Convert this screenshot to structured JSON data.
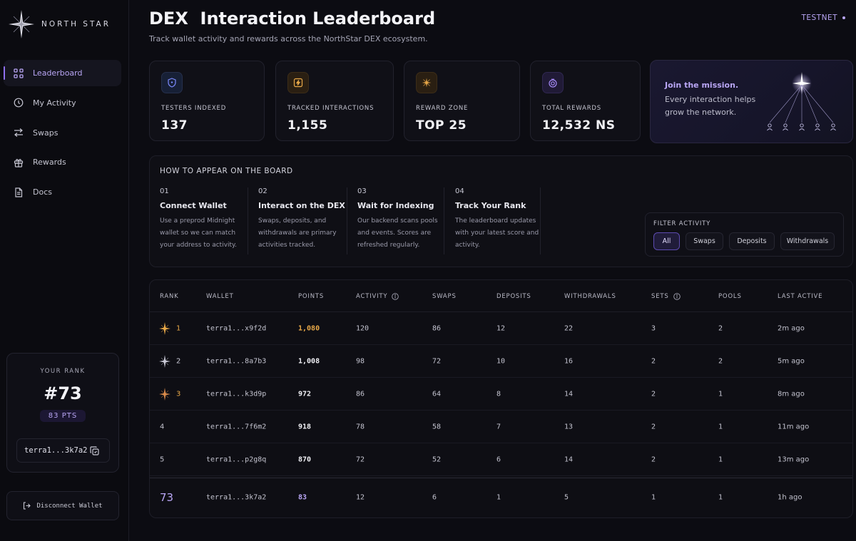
{
  "brand": {
    "name": "NORTH STAR"
  },
  "nav": [
    {
      "label": "Leaderboard",
      "icon": "grid-icon",
      "active": true
    },
    {
      "label": "My Activity",
      "icon": "activity-icon",
      "active": false
    },
    {
      "label": "Swaps",
      "icon": "swap-icon",
      "active": false
    },
    {
      "label": "Rewards",
      "icon": "gift-icon",
      "active": false
    },
    {
      "label": "Docs",
      "icon": "document-icon",
      "active": false
    }
  ],
  "your_rank": {
    "label": "YOUR RANK",
    "rank": "#73",
    "points": "83 PTS",
    "wallet": "terra1...3k7a2"
  },
  "disconnect_label": "Disconnect Wallet",
  "header": {
    "title": "DEX  Interaction Leaderboard",
    "subtitle": "Track wallet activity and rewards across the NorthStar DEX ecosystem.",
    "network": "TESTNET"
  },
  "stats": [
    {
      "label": "TESTERS INDEXED",
      "value": "137",
      "icon": "shield-icon",
      "color": "#7d8bff"
    },
    {
      "label": "TRACKED INTERACTIONS",
      "value": "1,155",
      "icon": "bolt-icon",
      "color": "#e9a948"
    },
    {
      "label": "REWARD ZONE",
      "value": "TOP 25",
      "icon": "star-icon",
      "color": "#e9a948"
    },
    {
      "label": "TOTAL REWARDS",
      "value": "12,532 NS",
      "icon": "coin-icon",
      "color": "#a78bfa"
    }
  ],
  "mission": {
    "title": "Join the mission.",
    "text": "Every interaction helps grow the network."
  },
  "howto": {
    "title": "HOW TO APPEAR ON THE BOARD",
    "steps": [
      {
        "num": "01",
        "title": "Connect Wallet",
        "desc": "Use a preprod Midnight wallet so we can match your address to activity."
      },
      {
        "num": "02",
        "title": "Interact on the DEX",
        "desc": "Swaps, deposits, and withdrawals are primary activities tracked."
      },
      {
        "num": "03",
        "title": "Wait for Indexing",
        "desc": "Our backend scans pools and events. Scores are refreshed regularly."
      },
      {
        "num": "04",
        "title": "Track Your Rank",
        "desc": "The leaderboard updates with your latest score and activity."
      }
    ]
  },
  "filter": {
    "label": "FILTER ACTIVITY",
    "options": [
      "All",
      "Swaps",
      "Deposits",
      "Withdrawals"
    ],
    "selected": "All"
  },
  "table": {
    "columns": [
      "RANK",
      "WALLET",
      "POINTS",
      "ACTIVITY",
      "SWAPS",
      "DEPOSITS",
      "WITHDRAWALS",
      "SETS",
      "POOLS",
      "LAST ACTIVE"
    ],
    "rows": [
      {
        "rank": "1",
        "medal": "gold",
        "wallet": "terra1...x9f2d",
        "points": "1,080",
        "activity": "120",
        "swaps": "86",
        "deposits": "12",
        "withdrawals": "22",
        "sets": "3",
        "pools": "2",
        "last_active": "2m ago"
      },
      {
        "rank": "2",
        "medal": "silver",
        "wallet": "terra1...8a7b3",
        "points": "1,008",
        "activity": "98",
        "swaps": "72",
        "deposits": "10",
        "withdrawals": "16",
        "sets": "2",
        "pools": "2",
        "last_active": "5m ago"
      },
      {
        "rank": "3",
        "medal": "bronze",
        "wallet": "terra1...k3d9p",
        "points": "972",
        "activity": "86",
        "swaps": "64",
        "deposits": "8",
        "withdrawals": "14",
        "sets": "2",
        "pools": "1",
        "last_active": "8m ago"
      },
      {
        "rank": "4",
        "medal": "",
        "wallet": "terra1...7f6m2",
        "points": "918",
        "activity": "78",
        "swaps": "58",
        "deposits": "7",
        "withdrawals": "13",
        "sets": "2",
        "pools": "1",
        "last_active": "11m ago"
      },
      {
        "rank": "5",
        "medal": "",
        "wallet": "terra1...p2g8q",
        "points": "870",
        "activity": "72",
        "swaps": "52",
        "deposits": "6",
        "withdrawals": "14",
        "sets": "2",
        "pools": "1",
        "last_active": "13m ago"
      }
    ],
    "you_row": {
      "rank": "73",
      "wallet": "terra1...3k7a2",
      "points": "83",
      "activity": "12",
      "swaps": "6",
      "deposits": "1",
      "withdrawals": "5",
      "sets": "1",
      "pools": "1",
      "last_active": "1h ago"
    }
  }
}
